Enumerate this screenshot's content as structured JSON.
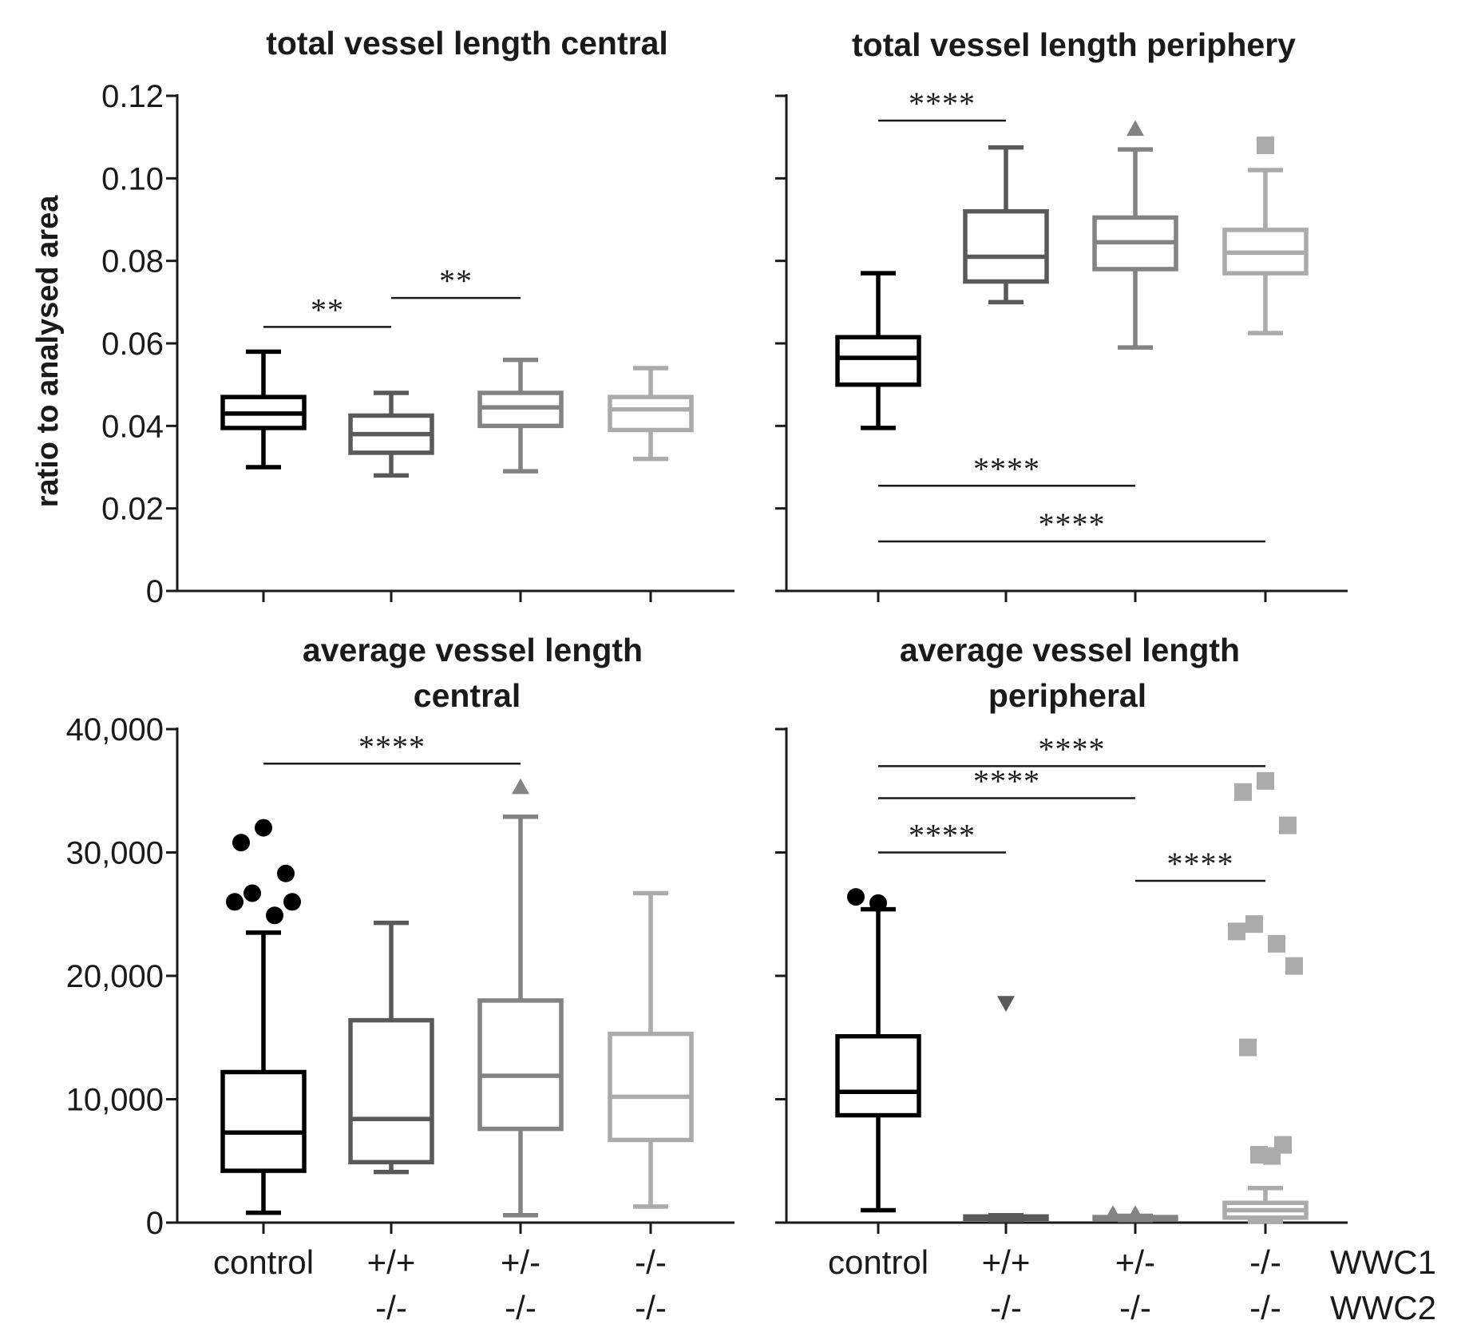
{
  "chart_data": [
    {
      "type": "box",
      "title": "total vessel length central",
      "ylabel": "ratio to analysed area",
      "ylim": [
        0,
        0.12
      ],
      "yticks": [
        0,
        0.02,
        0.04,
        0.06,
        0.08,
        0.1,
        0.12
      ],
      "ytick_labels": [
        "0",
        "0.02",
        "0.04",
        "0.06",
        "0.08",
        "0.10",
        "0.12"
      ],
      "show_tick_labels": true,
      "groups": [
        {
          "name": "control",
          "color": "#000000",
          "min": 0.03,
          "q1": 0.0395,
          "median": 0.043,
          "q3": 0.047,
          "max": 0.058,
          "outliers": [],
          "marker": "circle"
        },
        {
          "name": "WWC1 +/+ WWC2 -/-",
          "color": "#595959",
          "min": 0.028,
          "q1": 0.0335,
          "median": 0.038,
          "q3": 0.0425,
          "max": 0.048,
          "outliers": [],
          "marker": "triangle-down"
        },
        {
          "name": "WWC1 +/- WWC2 -/-",
          "color": "#838383",
          "min": 0.029,
          "q1": 0.04,
          "median": 0.0445,
          "q3": 0.048,
          "max": 0.056,
          "outliers": [],
          "marker": "triangle"
        },
        {
          "name": "WWC1 -/- WWC2 -/-",
          "color": "#ababab",
          "min": 0.032,
          "q1": 0.039,
          "median": 0.044,
          "q3": 0.047,
          "max": 0.054,
          "outliers": [],
          "marker": "square"
        }
      ],
      "significance": [
        {
          "from": 0,
          "to": 1,
          "label": "**",
          "y": 0.064
        },
        {
          "from": 1,
          "to": 2,
          "label": "**",
          "y": 0.071
        }
      ]
    },
    {
      "type": "box",
      "title": "total vessel length periphery",
      "ylabel": "",
      "ylim": [
        0,
        0.12
      ],
      "yticks": [
        0,
        0.02,
        0.04,
        0.06,
        0.08,
        0.1,
        0.12
      ],
      "ytick_labels": [],
      "show_tick_labels": false,
      "groups": [
        {
          "name": "control",
          "color": "#000000",
          "min": 0.0395,
          "q1": 0.05,
          "median": 0.0565,
          "q3": 0.0615,
          "max": 0.077,
          "outliers": [],
          "marker": "circle"
        },
        {
          "name": "WWC1 +/+ WWC2 -/-",
          "color": "#595959",
          "min": 0.07,
          "q1": 0.075,
          "median": 0.081,
          "q3": 0.092,
          "max": 0.1075,
          "outliers": [],
          "marker": "triangle-down"
        },
        {
          "name": "WWC1 +/- WWC2 -/-",
          "color": "#838383",
          "min": 0.059,
          "q1": 0.078,
          "median": 0.0845,
          "q3": 0.0905,
          "max": 0.107,
          "outliers": [
            0.112
          ],
          "marker": "triangle"
        },
        {
          "name": "WWC1 -/- WWC2 -/-",
          "color": "#ababab",
          "min": 0.0625,
          "q1": 0.077,
          "median": 0.082,
          "q3": 0.0875,
          "max": 0.102,
          "outliers": [
            0.108
          ],
          "marker": "square"
        }
      ],
      "significance": [
        {
          "from": 0,
          "to": 1,
          "label": "****",
          "y": 0.114
        },
        {
          "from": 0,
          "to": 2,
          "label": "****",
          "y": 0.0255
        },
        {
          "from": 0,
          "to": 3,
          "label": "****",
          "y": 0.012
        }
      ]
    },
    {
      "type": "box",
      "title": "average vessel length central",
      "title_lines": [
        "average vessel length",
        "central"
      ],
      "ylabel": "",
      "ylim": [
        0,
        40000
      ],
      "yticks": [
        0,
        10000,
        20000,
        30000,
        40000
      ],
      "ytick_labels": [
        "0",
        "10,000",
        "20,000",
        "30,000",
        "40,000"
      ],
      "show_tick_labels": true,
      "groups": [
        {
          "name": "control",
          "color": "#000000",
          "min": 800,
          "q1": 4200,
          "median": 7300,
          "q3": 12200,
          "max": 23500,
          "outliers": [
            32000,
            30800,
            28300,
            26700,
            24900,
            26000,
            26000
          ],
          "marker": "circle"
        },
        {
          "name": "WWC1 +/+ WWC2 -/-",
          "color": "#595959",
          "min": 4100,
          "q1": 4900,
          "median": 8400,
          "q3": 16400,
          "max": 24300,
          "outliers": [],
          "marker": "triangle-down"
        },
        {
          "name": "WWC1 +/- WWC2 -/-",
          "color": "#838383",
          "min": 600,
          "q1": 7600,
          "median": 11900,
          "q3": 18000,
          "max": 32900,
          "outliers": [
            35300
          ],
          "marker": "triangle"
        },
        {
          "name": "WWC1 -/- WWC2 -/-",
          "color": "#ababab",
          "min": 1300,
          "q1": 6700,
          "median": 10200,
          "q3": 15300,
          "max": 26700,
          "outliers": [],
          "marker": "square"
        }
      ],
      "significance": [
        {
          "from": 0,
          "to": 2,
          "label": "****",
          "y": 37200
        }
      ]
    },
    {
      "type": "box",
      "title": "average vessel length peripheral",
      "title_lines": [
        "average vessel length",
        "peripheral"
      ],
      "ylabel": "",
      "ylim": [
        0,
        40000
      ],
      "yticks": [
        0,
        10000,
        20000,
        30000,
        40000
      ],
      "ytick_labels": [],
      "show_tick_labels": false,
      "groups": [
        {
          "name": "control",
          "color": "#000000",
          "min": 1000,
          "q1": 8700,
          "median": 10600,
          "q3": 15100,
          "max": 25400,
          "outliers": [
            25900,
            26400
          ],
          "marker": "circle"
        },
        {
          "name": "WWC1 +/+ WWC2 -/-",
          "color": "#595959",
          "min": 200,
          "q1": 300,
          "median": 400,
          "q3": 500,
          "max": 600,
          "outliers": [
            17800
          ],
          "marker": "triangle-down"
        },
        {
          "name": "WWC1 +/- WWC2 -/-",
          "color": "#838383",
          "min": 200,
          "q1": 250,
          "median": 350,
          "q3": 450,
          "max": 550,
          "outliers": [
            700,
            700
          ],
          "marker": "triangle"
        },
        {
          "name": "WWC1 -/- WWC2 -/-",
          "color": "#ababab",
          "min": 100,
          "q1": 400,
          "median": 1000,
          "q3": 1600,
          "max": 2800,
          "outliers": [
            35800,
            34900,
            32200,
            24200,
            22600,
            23600,
            20800,
            14200,
            6300,
            5500,
            5400
          ],
          "marker": "square"
        }
      ],
      "significance": [
        {
          "from": 0,
          "to": 3,
          "label": "****",
          "y": 37000
        },
        {
          "from": 0,
          "to": 2,
          "label": "****",
          "y": 34400
        },
        {
          "from": 0,
          "to": 1,
          "label": "****",
          "y": 30000
        },
        {
          "from": 2,
          "to": 3,
          "label": "****",
          "y": 27700
        }
      ]
    }
  ],
  "x_categories": {
    "control_label": "control",
    "row1_label": "WWC1",
    "row2_label": "WWC2",
    "groups": [
      {
        "row1": "control",
        "row2": ""
      },
      {
        "row1": "+/+",
        "row2": "-/-"
      },
      {
        "row1": "+/-",
        "row2": "-/-"
      },
      {
        "row1": "-/-",
        "row2": "-/-"
      }
    ]
  }
}
